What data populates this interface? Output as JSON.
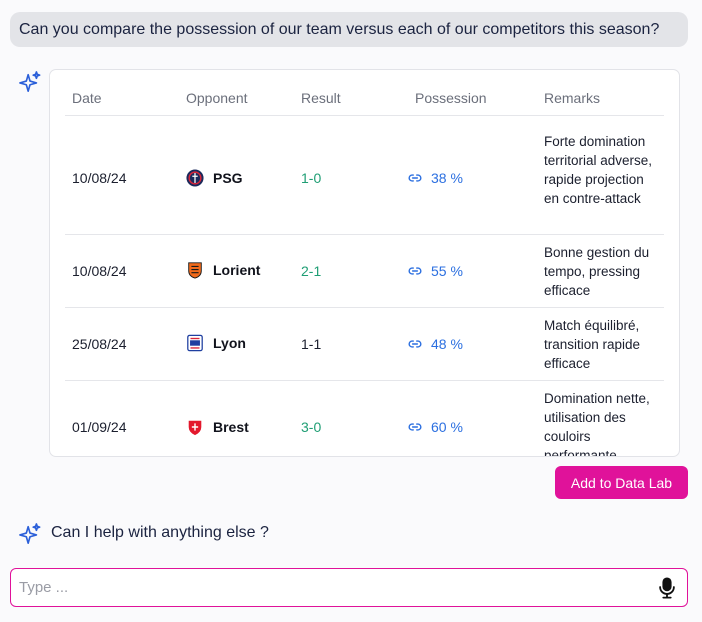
{
  "user_message": "Can you compare the possession of our team versus each of our competitors this season?",
  "table": {
    "headers": {
      "date": "Date",
      "opponent": "Opponent",
      "result": "Result",
      "possession": "Possession",
      "remarks": "Remarks"
    },
    "rows": [
      {
        "date": "10/08/24",
        "opponent": "PSG",
        "result": "1-0",
        "result_color": "#1f9e74",
        "possession": "38 %",
        "remarks": "Forte domination territorial adverse, rapide projection en contre-attack"
      },
      {
        "date": "10/08/24",
        "opponent": "Lorient",
        "result": "2-1",
        "result_color": "#1f9e74",
        "possession": "55 %",
        "remarks": "Bonne gestion du tempo, pressing efficace"
      },
      {
        "date": "25/08/24",
        "opponent": "Lyon",
        "result": "1-1",
        "result_color": "#1b1f2e",
        "possession": "48 %",
        "remarks": "Match équilibré, transition rapide efficace"
      },
      {
        "date": "01/09/24",
        "opponent": "Brest",
        "result": "3-0",
        "result_color": "#1f9e74",
        "possession": "60 %",
        "remarks": "Domination nette, utilisation des couloirs performante"
      }
    ]
  },
  "add_button_label": "Add to Data Lab",
  "followup_text": "Can I help with anything else ?",
  "input": {
    "placeholder": "Type ...",
    "value": ""
  },
  "colors": {
    "accent": "#e0129a",
    "link": "#2b6fe0",
    "win": "#1f9e74",
    "sparkle": "#2b5fd9"
  },
  "icons": [
    "sparkle-icon",
    "psg-logo",
    "lorient-logo",
    "lyon-logo",
    "brest-logo",
    "link-icon",
    "microphone-icon"
  ]
}
